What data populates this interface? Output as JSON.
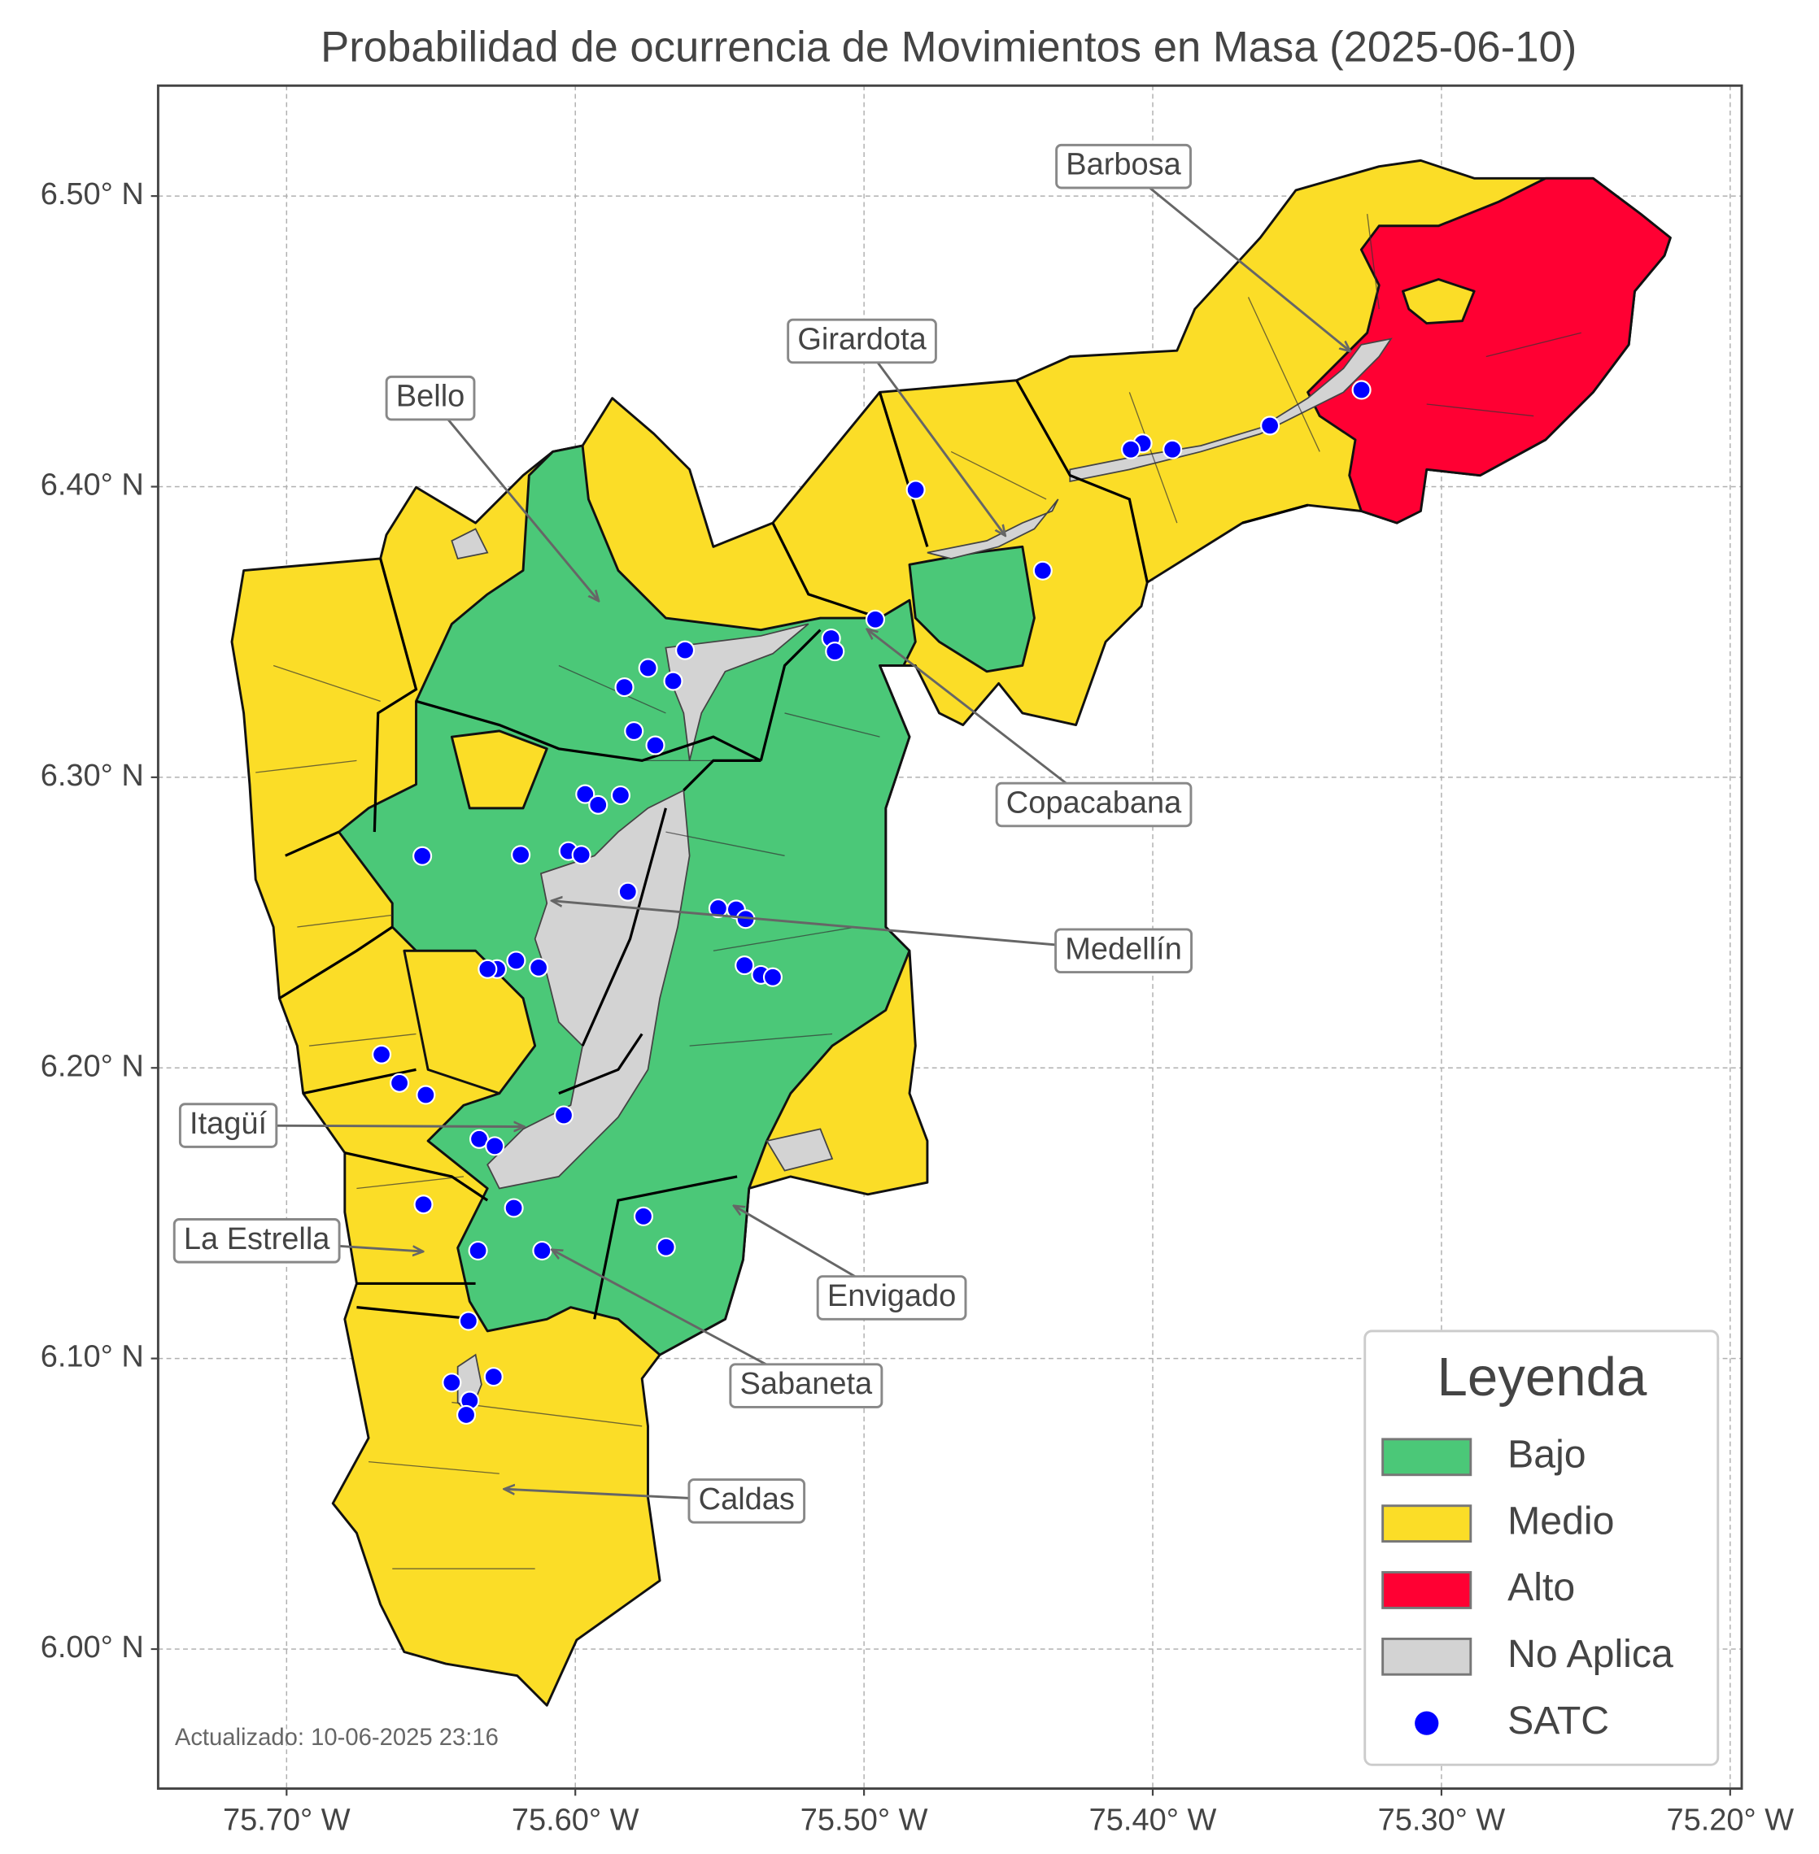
{
  "chart_data": {
    "type": "map",
    "title": "Probabilidad de ocurrencia de Movimientos en Masa (2025-06-10)",
    "xlim": [
      -75.7445,
      -75.196
    ],
    "ylim": [
      5.952,
      6.538
    ],
    "xticks": [
      {
        "value": -75.7,
        "label": "75.70° W"
      },
      {
        "value": -75.6,
        "label": "75.60° W"
      },
      {
        "value": -75.5,
        "label": "75.50° W"
      },
      {
        "value": -75.4,
        "label": "75.40° W"
      },
      {
        "value": -75.3,
        "label": "75.30° W"
      },
      {
        "value": -75.2,
        "label": "75.20° W"
      }
    ],
    "yticks": [
      {
        "value": 6.0,
        "label": "6.00° N"
      },
      {
        "value": 6.1,
        "label": "6.10° N"
      },
      {
        "value": 6.2,
        "label": "6.20° N"
      },
      {
        "value": 6.3,
        "label": "6.30° N"
      },
      {
        "value": 6.4,
        "label": "6.40° N"
      },
      {
        "value": 6.5,
        "label": "6.50° N"
      }
    ],
    "grid": true,
    "series": [
      {
        "name": "SATC",
        "color": "#0000ff",
        "x": [
          -75.3277,
          -75.3594,
          -75.3932,
          -75.4035,
          -75.4076,
          -75.4821,
          -75.4381,
          -75.4961,
          -75.5114,
          -75.5101,
          -75.562,
          -75.5748,
          -75.583,
          -75.5661,
          -75.5797,
          -75.5723,
          -75.5966,
          -75.5843,
          -75.5921,
          -75.653,
          -75.6189,
          -75.6024,
          -75.5979,
          -75.5818,
          -75.5505,
          -75.5443,
          -75.541,
          -75.5414,
          -75.5357,
          -75.5316,
          -75.6205,
          -75.6127,
          -75.6271,
          -75.6304,
          -75.6671,
          -75.6609,
          -75.6518,
          -75.604,
          -75.6333,
          -75.6279,
          -75.6213,
          -75.6526,
          -75.5764,
          -75.5686,
          -75.6337,
          -75.6115,
          -75.637,
          -75.6428,
          -75.6283,
          -75.6366,
          -75.6378
        ],
        "y": [
          6.4333,
          6.421,
          6.4128,
          6.4149,
          6.4128,
          6.3989,
          6.3711,
          6.3543,
          6.3478,
          6.3433,
          6.3437,
          6.3376,
          6.331,
          6.3331,
          6.3159,
          6.311,
          6.2942,
          6.2938,
          6.2905,
          6.2729,
          6.2733,
          6.2746,
          6.2733,
          6.2606,
          6.2549,
          6.2545,
          6.2512,
          6.2353,
          6.232,
          6.2312,
          6.2369,
          6.2345,
          6.234,
          6.234,
          6.2046,
          6.1948,
          6.1907,
          6.1837,
          6.1755,
          6.1731,
          6.1518,
          6.153,
          6.1489,
          6.1383,
          6.1371,
          6.1371,
          6.1129,
          6.0917,
          6.0937,
          6.0855,
          6.0806
        ]
      }
    ],
    "legend": {
      "title": "Leyenda",
      "position": "lower right",
      "items": [
        {
          "name": "Bajo",
          "color": "#4bc878"
        },
        {
          "name": "Medio",
          "color": "#fbdd27"
        },
        {
          "name": "Alto",
          "color": "#ff0033"
        },
        {
          "name": "No Aplica",
          "color": "#d3d3d3"
        }
      ]
    },
    "annotations": [
      "Barbosa",
      "Girardota",
      "Bello",
      "Copacabana",
      "Medellín",
      "Itagüí",
      "La Estrella",
      "Envigado",
      "Sabaneta",
      "Caldas"
    ],
    "footnote": "Actualizado: 10-06-2025 23:16"
  }
}
